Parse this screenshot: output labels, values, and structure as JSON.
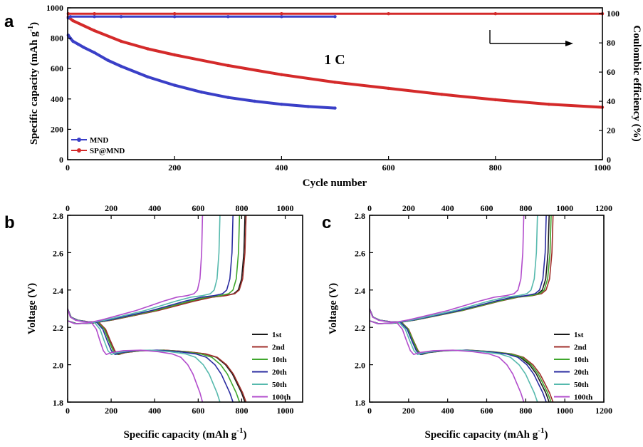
{
  "chart_data": [
    {
      "panel": "a",
      "type": "line",
      "xlabel": "Cycle number",
      "ylabel": "Specific capacity (mAh g",
      "ylabel_sup": "-1",
      "ylabel_end": ")",
      "y2label": "Coulombic efficiency (%)",
      "xlim": [
        0,
        1000
      ],
      "ylim": [
        0,
        1000
      ],
      "y2lim": [
        0,
        104
      ],
      "x_ticks": [
        0,
        200,
        400,
        600,
        800,
        1000
      ],
      "y_ticks": [
        0,
        200,
        400,
        600,
        800,
        1000
      ],
      "y2_ticks": [
        0,
        20,
        40,
        60,
        80,
        100
      ],
      "annotation": "1 C",
      "series": [
        {
          "name": "MND",
          "color": "#3a3fc7",
          "axis": "capacity",
          "x": [
            1,
            5,
            10,
            20,
            30,
            50,
            75,
            100,
            150,
            200,
            250,
            300,
            350,
            400,
            450,
            500
          ],
          "y": [
            820,
            800,
            780,
            760,
            740,
            705,
            655,
            615,
            545,
            490,
            445,
            410,
            385,
            365,
            350,
            340
          ]
        },
        {
          "name": "SP@MND",
          "color": "#d42a2a",
          "axis": "capacity",
          "x": [
            1,
            10,
            50,
            100,
            150,
            200,
            300,
            400,
            500,
            600,
            700,
            800,
            900,
            1000
          ],
          "y": [
            940,
            915,
            850,
            780,
            730,
            690,
            620,
            560,
            510,
            470,
            430,
            395,
            365,
            345
          ]
        },
        {
          "name": "MND CE",
          "color": "#3a3fc7",
          "axis": "efficiency",
          "x": [
            1,
            5,
            50,
            100,
            200,
            300,
            400,
            500
          ],
          "y": [
            97,
            98,
            98,
            98,
            98,
            98,
            98,
            98
          ]
        },
        {
          "name": "SP@MND CE",
          "color": "#d42a2a",
          "axis": "efficiency",
          "x": [
            1,
            50,
            200,
            400,
            600,
            800,
            1000
          ],
          "y": [
            100,
            100,
            100,
            100,
            100,
            100,
            100
          ]
        }
      ],
      "legend": [
        "MND",
        "SP@MND"
      ]
    },
    {
      "panel": "b",
      "type": "line",
      "xlabel": "Specific capacity (mAh g",
      "xlabel_sup": "-1",
      "xlabel_end": ")",
      "ylabel": "Voltage (V)",
      "xlim": [
        0,
        1080
      ],
      "ylim": [
        1.8,
        2.8
      ],
      "x_ticks": [
        0,
        200,
        400,
        600,
        800,
        1000
      ],
      "y_ticks": [
        1.8,
        2.0,
        2.2,
        2.4,
        2.6,
        2.8
      ],
      "legend": [
        "1st",
        "2nd",
        "10th",
        "20th",
        "50th",
        "100th"
      ],
      "series": [
        {
          "name": "1st",
          "color": "#1a1a1a",
          "capacity": 815
        },
        {
          "name": "2nd",
          "color": "#a0302c",
          "capacity": 820
        },
        {
          "name": "10th",
          "color": "#3fa62c",
          "capacity": 790
        },
        {
          "name": "20th",
          "color": "#2a2ba0",
          "capacity": 760
        },
        {
          "name": "50th",
          "color": "#56b9ad",
          "capacity": 700
        },
        {
          "name": "100th",
          "color": "#b24ccc",
          "capacity": 620
        }
      ]
    },
    {
      "panel": "c",
      "type": "line",
      "xlabel": "Specific capacity (mAh g",
      "xlabel_sup": "-1",
      "xlabel_end": ")",
      "ylabel": "Voltage (V)",
      "xlim": [
        0,
        1200
      ],
      "ylim": [
        1.8,
        2.8
      ],
      "x_ticks": [
        0,
        200,
        400,
        600,
        800,
        1000,
        1200
      ],
      "y_ticks": [
        1.8,
        2.0,
        2.2,
        2.4,
        2.6,
        2.8
      ],
      "legend": [
        "1st",
        "2nd",
        "10th",
        "20th",
        "50th",
        "100th"
      ],
      "series": [
        {
          "name": "1st",
          "color": "#1a1a1a",
          "capacity": 920
        },
        {
          "name": "2nd",
          "color": "#a0302c",
          "capacity": 940
        },
        {
          "name": "10th",
          "color": "#3fa62c",
          "capacity": 930
        },
        {
          "name": "20th",
          "color": "#2a2ba0",
          "capacity": 905
        },
        {
          "name": "50th",
          "color": "#56b9ad",
          "capacity": 860
        },
        {
          "name": "100th",
          "color": "#b24ccc",
          "capacity": 790
        }
      ]
    }
  ]
}
